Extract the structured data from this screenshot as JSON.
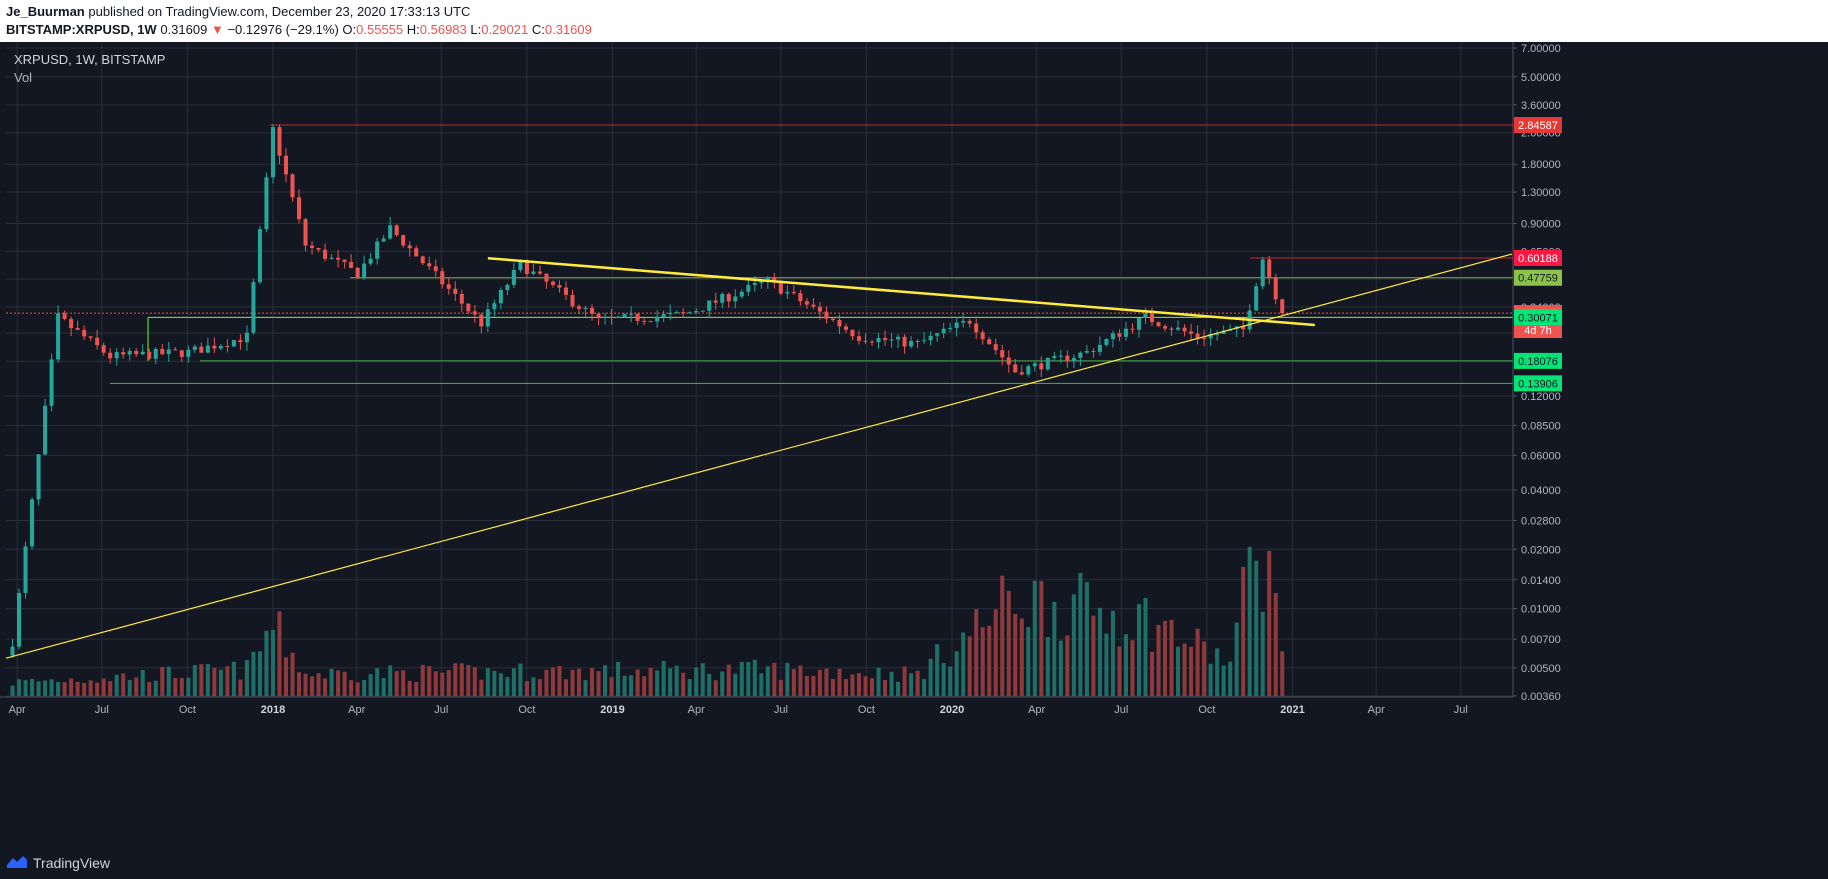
{
  "header": {
    "author": "Je_Buurman",
    "published_text": "published on TradingView.com, December 23, 2020 17:33:13 UTC",
    "symbol_line": "BITSTAMP:XRPUSD, 1W",
    "last_price": "0.31609",
    "change_arrow": "▼",
    "change": "−0.12976 (−29.1%)",
    "o_label": "O:",
    "o_value": "0.55555",
    "h_label": "H:",
    "h_value": "0.56983",
    "l_label": "L:",
    "l_value": "0.29021",
    "c_label": "C:",
    "c_value": "0.31609"
  },
  "legend": {
    "title": "XRPUSD, 1W, BITSTAMP",
    "vol": "Vol"
  },
  "footer": {
    "brand": "TradingView"
  },
  "colors": {
    "background": "#131722",
    "grid": "#2a2e39",
    "up": "#26a69a",
    "down": "#ef5350",
    "vol_up": "#1f6f69",
    "vol_down": "#8e3a3c",
    "trendline": "#ffeb3b",
    "support": "#4caf50",
    "resistance": "#c62828"
  },
  "chart_data": {
    "type": "candlestick",
    "symbol": "XRPUSD",
    "timeframe": "1W",
    "exchange": "BITSTAMP",
    "y_scale": "log",
    "ylim": [
      0.0036,
      7.0
    ],
    "y_ticks": [
      "7.00000",
      "5.00000",
      "3.60000",
      "2.60000",
      "1.80000",
      "1.30000",
      "0.90000",
      "0.65000",
      "0.47000",
      "0.34000",
      "0.25000",
      "0.18000",
      "0.12000",
      "0.08500",
      "0.06000",
      "0.04000",
      "0.02800",
      "0.02000",
      "0.01400",
      "0.01000",
      "0.00700",
      "0.00500",
      "0.00360"
    ],
    "x_ticks": [
      "Apr",
      "Jul",
      "Oct",
      "2018",
      "Apr",
      "Jul",
      "Oct",
      "2019",
      "Apr",
      "Jul",
      "Oct",
      "2020",
      "Apr",
      "Jul",
      "Oct",
      "2021",
      "Apr",
      "Jul"
    ],
    "x_range": [
      "2017-03-20",
      "2021-08-25"
    ],
    "price_labels": [
      {
        "value": "2.84587",
        "kind": "resistance"
      },
      {
        "value": "0.60188",
        "kind": "resistance"
      },
      {
        "value": "0.47759",
        "kind": "support_light"
      },
      {
        "value": "0.31609",
        "kind": "last"
      },
      {
        "value": "4d 7h",
        "kind": "countdown"
      },
      {
        "value": "0.30071",
        "kind": "support"
      },
      {
        "value": "0.18076",
        "kind": "support"
      },
      {
        "value": "0.13906",
        "kind": "support"
      }
    ],
    "horizontal_levels": [
      2.84587,
      0.60188,
      0.47759,
      0.31609,
      0.30071,
      0.18076,
      0.13906
    ],
    "trendlines": [
      {
        "name": "descending",
        "points": [
          [
            "2018-08-20",
            0.6
          ],
          [
            "2021-01-25",
            0.275
          ]
        ]
      },
      {
        "name": "ascending",
        "points": [
          [
            "2017-03-20",
            0.0056
          ],
          [
            "2021-08-25",
            0.63
          ]
        ]
      }
    ],
    "anchors": [
      [
        "2017-03-27",
        0.0068
      ],
      [
        "2017-05-15",
        0.3
      ],
      [
        "2017-07-10",
        0.19
      ],
      [
        "2017-10-02",
        0.2
      ],
      [
        "2017-12-04",
        0.24
      ],
      [
        "2018-01-01",
        2.7
      ],
      [
        "2018-02-05",
        0.7
      ],
      [
        "2018-04-02",
        0.5
      ],
      [
        "2018-05-07",
        0.85
      ],
      [
        "2018-08-13",
        0.28
      ],
      [
        "2018-09-24",
        0.56
      ],
      [
        "2018-12-17",
        0.29
      ],
      [
        "2019-03-18",
        0.31
      ],
      [
        "2019-06-17",
        0.46
      ],
      [
        "2019-09-23",
        0.24
      ],
      [
        "2019-11-25",
        0.22
      ],
      [
        "2020-01-20",
        0.29
      ],
      [
        "2020-03-09",
        0.16
      ],
      [
        "2020-05-25",
        0.2
      ],
      [
        "2020-07-27",
        0.3
      ],
      [
        "2020-09-21",
        0.24
      ],
      [
        "2020-11-09",
        0.26
      ],
      [
        "2020-11-30",
        0.6
      ],
      [
        "2020-12-21",
        0.316
      ]
    ],
    "volume_profile": [
      [
        "2017-03-20",
        0.06
      ],
      [
        "2017-12-04",
        0.12
      ],
      [
        "2018-01-01",
        0.32
      ],
      [
        "2018-02-05",
        0.1
      ],
      [
        "2018-09-24",
        0.11
      ],
      [
        "2019-06-17",
        0.12
      ],
      [
        "2019-11-25",
        0.1
      ],
      [
        "2020-03-09",
        0.45
      ],
      [
        "2020-07-27",
        0.35
      ],
      [
        "2020-10-26",
        0.15
      ],
      [
        "2020-11-23",
        0.73
      ],
      [
        "2020-12-21",
        0.32
      ]
    ]
  }
}
